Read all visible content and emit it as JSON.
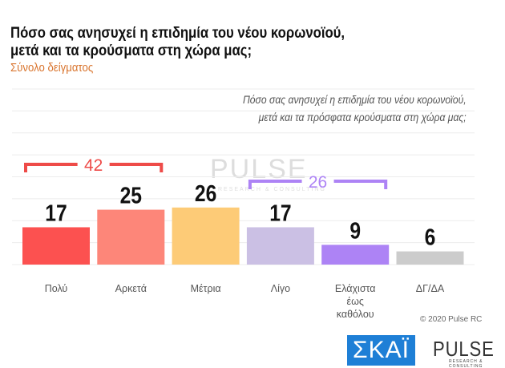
{
  "title_line1": "Πόσο σας ανησυχεί η επιδημία του νέου κορωνοϊού,",
  "title_line2": "μετά και τα κρούσματα στη χώρα μας;",
  "subtitle": "Σύνολο δείγματος",
  "question_line1": "Πόσο σας ανησυχεί η επιδημία του νέου κορωνοϊού,",
  "question_line2": "μετά και τα πρόσφατα κρούσματα στη χώρα μας;",
  "copyright": "© 2020 Pulse RC",
  "logos": {
    "skai": "ΣΚΑΪ",
    "pulse": "PULSE",
    "pulse_sub": "RESEARCH & CONSULTING"
  },
  "chart_data": {
    "type": "bar",
    "categories": [
      "Πολύ",
      "Αρκετά",
      "Μέτρια",
      "Λίγο",
      "Ελάχιστα έως καθόλου",
      "ΔΓ/ΔΑ"
    ],
    "values": [
      17,
      25,
      26,
      17,
      9,
      6
    ],
    "colors": [
      "#fc5150",
      "#fd8679",
      "#fdcb77",
      "#cbc0e4",
      "#ad83f5",
      "#cccccc"
    ],
    "ylim": [
      0,
      80
    ],
    "grid": true,
    "groups": [
      {
        "label": "42",
        "from": 0,
        "to": 1,
        "color": "#ee4b48"
      },
      {
        "label": "26",
        "from": 3,
        "to": 4,
        "color": "#ad83f5"
      }
    ]
  }
}
